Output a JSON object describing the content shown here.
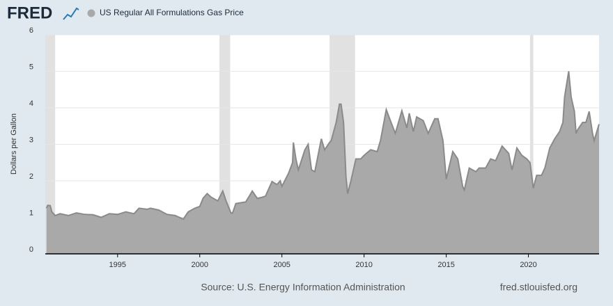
{
  "chart_data": {
    "type": "area",
    "logo": "FRED",
    "title": "US Regular All Formulations Gas Price",
    "ylabel": "Dollars per Gallon",
    "source": "Source: U.S. Energy Information Administration",
    "site": "fred.stlouisfed.org",
    "color": "#a9a9a9",
    "line_color": "#8a8a8a",
    "recession_color": "#e1e1e1",
    "grid": true,
    "xlim": [
      1990.6,
      2024.3
    ],
    "ylim": [
      0,
      6
    ],
    "xticks": [
      1995,
      2000,
      2005,
      2010,
      2015,
      2020
    ],
    "yticks": [
      0,
      1,
      2,
      3,
      4,
      5,
      6
    ],
    "recessions": [
      [
        1990.6,
        1991.2
      ],
      [
        2001.2,
        2001.85
      ],
      [
        2007.9,
        2009.45
      ],
      [
        2020.1,
        2020.3
      ]
    ],
    "x": [
      1990.67,
      1990.75,
      1990.9,
      1991.0,
      1991.2,
      1991.5,
      1992.0,
      1992.5,
      1993.0,
      1993.5,
      1994.0,
      1994.5,
      1995.0,
      1995.5,
      1996.0,
      1996.3,
      1996.8,
      1997.0,
      1997.5,
      1998.0,
      1998.5,
      1999.0,
      1999.3,
      1999.7,
      2000.0,
      2000.2,
      2000.45,
      2000.7,
      2000.9,
      2001.1,
      2001.4,
      2001.6,
      2001.9,
      2002.0,
      2002.2,
      2002.5,
      2002.8,
      2003.2,
      2003.5,
      2003.8,
      2004.0,
      2004.4,
      2004.7,
      2004.9,
      2005.0,
      2005.4,
      2005.65,
      2005.7,
      2005.85,
      2006.0,
      2006.4,
      2006.6,
      2006.8,
      2007.0,
      2007.4,
      2007.6,
      2007.9,
      2008.0,
      2008.3,
      2008.5,
      2008.6,
      2008.75,
      2008.9,
      2009.0,
      2009.2,
      2009.5,
      2009.8,
      2010.0,
      2010.4,
      2010.8,
      2011.0,
      2011.35,
      2011.6,
      2011.9,
      2012.3,
      2012.6,
      2012.75,
      2013.0,
      2013.2,
      2013.6,
      2013.9,
      2014.3,
      2014.5,
      2014.8,
      2015.0,
      2015.4,
      2015.7,
      2016.0,
      2016.1,
      2016.4,
      2016.8,
      2017.0,
      2017.4,
      2017.7,
      2018.0,
      2018.4,
      2018.8,
      2019.0,
      2019.3,
      2019.6,
      2019.9,
      2020.1,
      2020.3,
      2020.5,
      2020.8,
      2021.0,
      2021.3,
      2021.6,
      2021.9,
      2022.1,
      2022.2,
      2022.45,
      2022.6,
      2022.8,
      2022.9,
      2023.0,
      2023.3,
      2023.5,
      2023.7,
      2023.9,
      2024.0,
      2024.3
    ],
    "values": [
      1.25,
      1.33,
      1.32,
      1.15,
      1.05,
      1.1,
      1.05,
      1.12,
      1.08,
      1.07,
      1.0,
      1.1,
      1.08,
      1.15,
      1.1,
      1.25,
      1.22,
      1.25,
      1.2,
      1.08,
      1.05,
      0.95,
      1.15,
      1.25,
      1.3,
      1.52,
      1.65,
      1.55,
      1.5,
      1.45,
      1.72,
      1.45,
      1.12,
      1.12,
      1.38,
      1.4,
      1.42,
      1.72,
      1.52,
      1.55,
      1.58,
      1.98,
      1.9,
      2.0,
      1.85,
      2.2,
      2.5,
      3.05,
      2.6,
      2.3,
      2.85,
      3.0,
      2.3,
      2.25,
      3.15,
      2.85,
      3.05,
      3.1,
      3.6,
      4.1,
      4.1,
      3.6,
      2.1,
      1.65,
      2.0,
      2.6,
      2.6,
      2.7,
      2.85,
      2.8,
      3.1,
      3.95,
      3.65,
      3.3,
      3.92,
      3.45,
      3.85,
      3.35,
      3.75,
      3.65,
      3.3,
      3.7,
      3.7,
      3.1,
      2.05,
      2.8,
      2.6,
      1.85,
      1.75,
      2.35,
      2.25,
      2.35,
      2.35,
      2.6,
      2.55,
      2.95,
      2.75,
      2.3,
      2.9,
      2.7,
      2.6,
      2.5,
      1.8,
      2.15,
      2.15,
      2.35,
      2.9,
      3.15,
      3.35,
      3.6,
      4.3,
      5.0,
      4.3,
      3.9,
      3.3,
      3.4,
      3.6,
      3.6,
      3.9,
      3.3,
      3.1,
      3.55
    ]
  }
}
